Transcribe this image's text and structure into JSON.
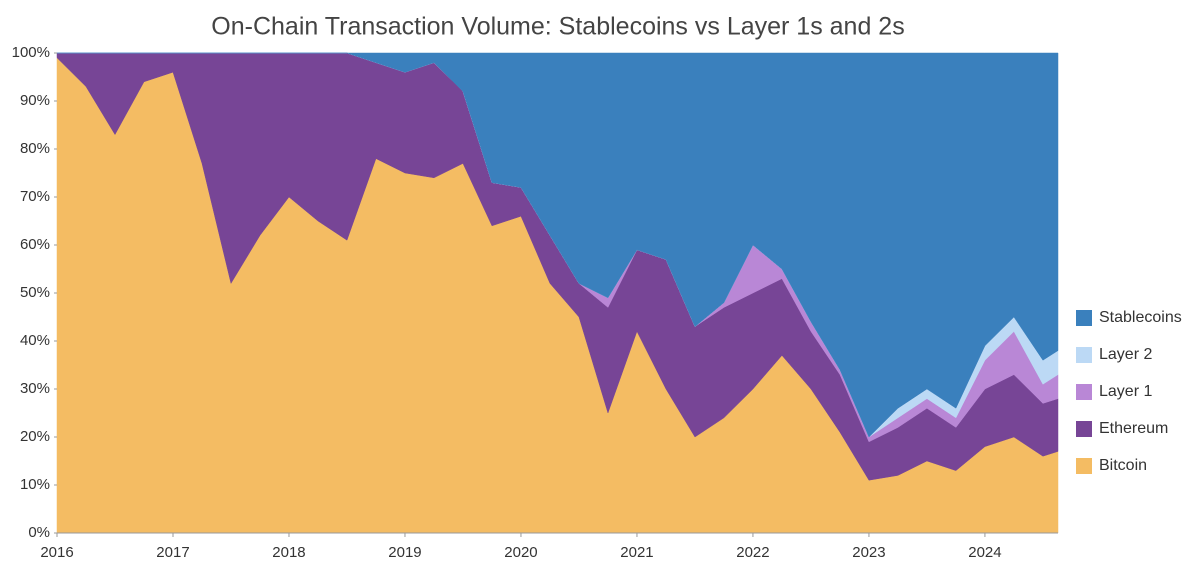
{
  "chart_data": {
    "type": "stacked_area",
    "title": "On-Chain Transaction Volume: Stablecoins vs Layer 1s and 2s",
    "x": [
      2016.0,
      2016.25,
      2016.5,
      2016.75,
      2017.0,
      2017.25,
      2017.5,
      2017.75,
      2018.0,
      2018.25,
      2018.5,
      2018.75,
      2019.0,
      2019.25,
      2019.5,
      2019.75,
      2020.0,
      2020.25,
      2020.5,
      2020.75,
      2021.0,
      2021.25,
      2021.5,
      2021.75,
      2022.0,
      2022.25,
      2022.5,
      2022.75,
      2023.0,
      2023.25,
      2023.5,
      2023.75,
      2024.0,
      2024.25,
      2024.5,
      2024.63
    ],
    "series": [
      {
        "name": "Bitcoin",
        "color": "#f4bc63",
        "values": [
          99,
          93,
          83,
          94,
          96,
          77,
          52,
          62,
          70,
          65,
          61,
          78,
          75,
          74,
          77,
          64,
          66,
          52,
          45,
          25,
          42,
          30,
          20,
          24,
          30,
          37,
          30,
          21,
          11,
          12,
          15,
          13,
          18,
          20,
          16,
          17
        ]
      },
      {
        "name": "Ethereum",
        "color": "#774596",
        "values": [
          1,
          7,
          17,
          6,
          4,
          23,
          48,
          38,
          30,
          35,
          39,
          20,
          21,
          24,
          15,
          9,
          6,
          10,
          7,
          22,
          17,
          27,
          23,
          23,
          20,
          16,
          12,
          12,
          8,
          10,
          11,
          9,
          12,
          13,
          11,
          11
        ]
      },
      {
        "name": "Layer 1",
        "color": "#b987d6",
        "values": [
          0,
          0,
          0,
          0,
          0,
          0,
          0,
          0,
          0,
          0,
          0,
          0,
          0,
          0,
          0,
          0,
          0,
          0,
          0,
          2,
          0,
          0,
          0,
          1,
          10,
          2,
          2,
          1,
          1,
          2,
          2,
          2,
          6,
          9,
          4,
          5
        ]
      },
      {
        "name": "Layer 2",
        "color": "#bcd9f5",
        "values": [
          0,
          0,
          0,
          0,
          0,
          0,
          0,
          0,
          0,
          0,
          0,
          0,
          0,
          0,
          0,
          0,
          0,
          0,
          0,
          0,
          0,
          0,
          0,
          0,
          0,
          0,
          0,
          0,
          0,
          2,
          2,
          2,
          3,
          3,
          5,
          5
        ]
      },
      {
        "name": "Stablecoins",
        "color": "#3a80bd",
        "values": [
          0,
          0,
          0,
          0,
          0,
          0,
          0,
          0,
          0,
          0,
          0,
          2,
          4,
          2,
          8,
          27,
          28,
          38,
          48,
          51,
          41,
          43,
          57,
          52,
          40,
          45,
          56,
          66,
          80,
          74,
          70,
          74,
          61,
          55,
          64,
          62
        ]
      }
    ],
    "xlim": [
      2016,
      2024.63
    ],
    "xticks": [
      2016,
      2017,
      2018,
      2019,
      2020,
      2021,
      2022,
      2023,
      2024
    ],
    "ylim": [
      0,
      100
    ],
    "yticks": [
      {
        "value": 0,
        "label": "0%"
      },
      {
        "value": 10,
        "label": "10%"
      },
      {
        "value": 20,
        "label": "20%"
      },
      {
        "value": 30,
        "label": "30%"
      },
      {
        "value": 40,
        "label": "40%"
      },
      {
        "value": 50,
        "label": "50%"
      },
      {
        "value": 60,
        "label": "60%"
      },
      {
        "value": 70,
        "label": "70%"
      },
      {
        "value": 80,
        "label": "80%"
      },
      {
        "value": 90,
        "label": "90%"
      },
      {
        "value": 100,
        "label": "100%"
      }
    ],
    "legend": "right"
  }
}
